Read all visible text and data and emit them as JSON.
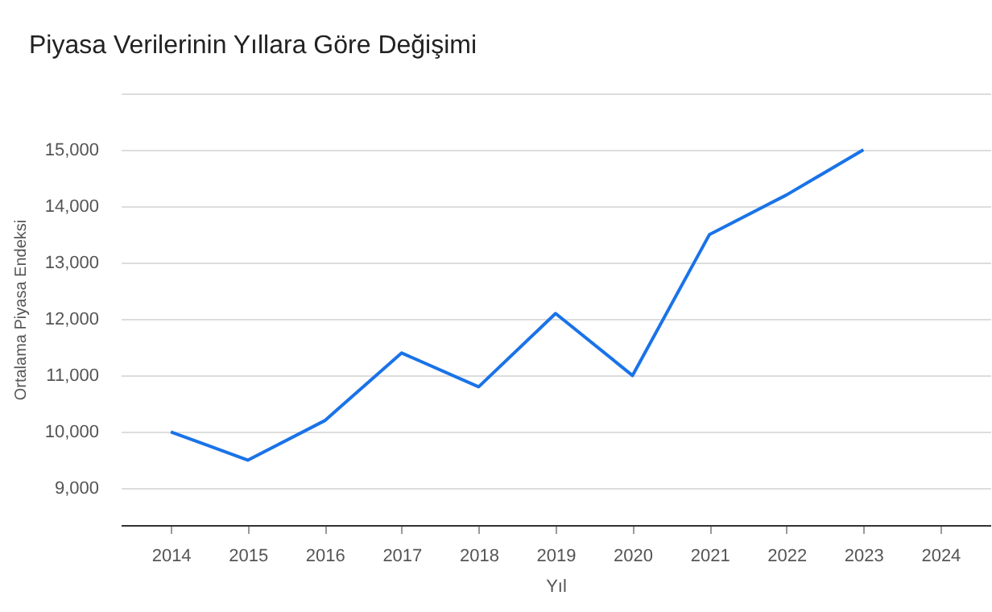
{
  "chart_data": {
    "type": "line",
    "title": "Piyasa Verilerinin Yıllara Göre Değişimi",
    "xlabel": "Yıl",
    "ylabel": "Ortalama Piyasa Endeksi",
    "x": [
      2014,
      2015,
      2016,
      2017,
      2018,
      2019,
      2020,
      2021,
      2022,
      2023
    ],
    "series": [
      {
        "color": "#1a73e8",
        "values": [
          10000,
          9500,
          10200,
          11400,
          10800,
          12100,
          11000,
          13500,
          14200,
          15000
        ]
      }
    ],
    "xlim": [
      2013.35,
      2024.65
    ],
    "xticks": [
      2014,
      2015,
      2016,
      2017,
      2018,
      2019,
      2020,
      2021,
      2022,
      2023,
      2024
    ],
    "ylim": [
      8350,
      16000
    ],
    "yticks": [
      {
        "value": 9000,
        "label": "9,000"
      },
      {
        "value": 10000,
        "label": "10,000"
      },
      {
        "value": 11000,
        "label": "11,000"
      },
      {
        "value": 12000,
        "label": "12,000"
      },
      {
        "value": 13000,
        "label": "13,000"
      },
      {
        "value": 14000,
        "label": "14,000"
      },
      {
        "value": 15000,
        "label": "15,000"
      },
      {
        "value": 16000,
        "label": null
      }
    ],
    "grid": "y",
    "legend": false,
    "marker": "none",
    "line_style": "solid"
  }
}
